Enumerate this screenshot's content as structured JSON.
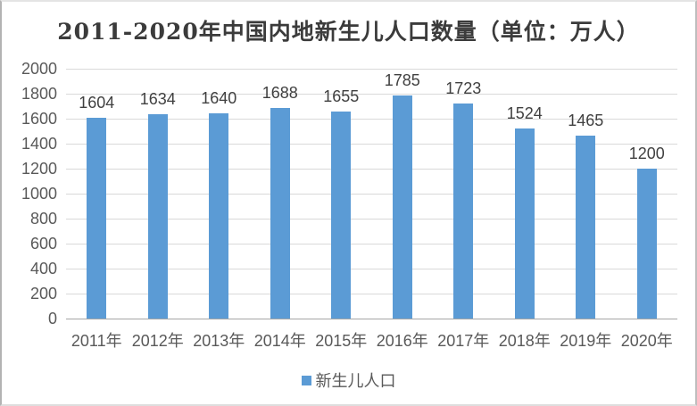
{
  "chart_data": {
    "type": "bar",
    "title": "2011-2020年中国内地新生儿人口数量（单位：万人）",
    "categories": [
      "2011年",
      "2012年",
      "2013年",
      "2014年",
      "2015年",
      "2016年",
      "2017年",
      "2018年",
      "2019年",
      "2020年"
    ],
    "values": [
      1604,
      1634,
      1640,
      1688,
      1655,
      1785,
      1723,
      1524,
      1465,
      1200
    ],
    "series_name": "新生儿人口",
    "xlabel": "",
    "ylabel": "",
    "ylim": [
      0,
      2000
    ],
    "ytick_step": 200,
    "grid": true,
    "show_data_labels": true,
    "legend_position": "bottom",
    "colors": {
      "bar": "#5b9bd5",
      "gridline": "#d9d9d9",
      "axis_line": "#a6a6a6",
      "title_text": "#3b3b3b",
      "label_text": "#404040",
      "tick_text": "#595959"
    }
  }
}
